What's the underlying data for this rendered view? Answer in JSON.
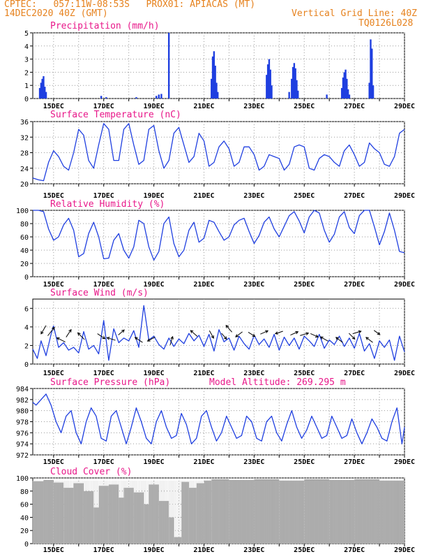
{
  "header": {
    "line1": "CPTEC:   057:11W-08:53S   PROX01: APIACAS (MT)",
    "date": "14DEC2020 40Z (GMT)",
    "grid_line": "Vertical Grid Line: 40Z",
    "code": "TQ0126L028"
  },
  "colors": {
    "orange": "#e6821e",
    "magenta": "#e8188a",
    "series": "#1f3fe0",
    "cloud": "#a9a9a9",
    "grid": "#9a9a9a"
  },
  "x_tick_labels": [
    "15DEC",
    "17DEC",
    "19DEC",
    "21DEC",
    "23DEC",
    "25DEC",
    "27DEC",
    "29DEC"
  ],
  "chart_data": [
    {
      "type": "bar",
      "title": "Precipitation (mm/h)",
      "ylim": [
        0,
        5
      ],
      "yticks": [
        0,
        1,
        2,
        3,
        4,
        5
      ],
      "x_range_days": [
        14.17,
        29.0
      ],
      "grid": true,
      "points": [
        [
          14.45,
          0.8
        ],
        [
          14.5,
          1.2
        ],
        [
          14.55,
          1.5
        ],
        [
          14.6,
          1.7
        ],
        [
          14.65,
          0.9
        ],
        [
          14.7,
          0.5
        ],
        [
          16.9,
          0.2
        ],
        [
          17.1,
          0.1
        ],
        [
          18.3,
          0.1
        ],
        [
          19.1,
          0.2
        ],
        [
          19.2,
          0.3
        ],
        [
          19.3,
          0.35
        ],
        [
          19.6,
          5.0
        ],
        [
          21.3,
          1.5
        ],
        [
          21.35,
          3.2
        ],
        [
          21.4,
          3.6
        ],
        [
          21.45,
          2.5
        ],
        [
          21.5,
          1.2
        ],
        [
          21.55,
          0.5
        ],
        [
          23.5,
          1.8
        ],
        [
          23.55,
          2.6
        ],
        [
          23.6,
          3.0
        ],
        [
          23.65,
          2.2
        ],
        [
          23.7,
          1.0
        ],
        [
          24.4,
          0.5
        ],
        [
          24.5,
          1.5
        ],
        [
          24.55,
          2.4
        ],
        [
          24.6,
          2.7
        ],
        [
          24.65,
          2.3
        ],
        [
          24.7,
          1.4
        ],
        [
          24.75,
          0.6
        ],
        [
          25.9,
          0.3
        ],
        [
          26.5,
          0.8
        ],
        [
          26.55,
          1.6
        ],
        [
          26.6,
          2.0
        ],
        [
          26.65,
          2.2
        ],
        [
          26.7,
          1.5
        ],
        [
          26.75,
          0.7
        ],
        [
          26.8,
          0.3
        ],
        [
          27.6,
          1.2
        ],
        [
          27.65,
          4.5
        ],
        [
          27.7,
          3.8
        ],
        [
          27.75,
          1.0
        ]
      ]
    },
    {
      "type": "line",
      "title": "Surface Temperature (nC)",
      "ylim": [
        20,
        36
      ],
      "yticks": [
        20,
        24,
        28,
        32,
        36
      ],
      "grid": true,
      "x": [
        14.17,
        14.4,
        14.6,
        14.8,
        15.0,
        15.2,
        15.4,
        15.6,
        15.8,
        16.0,
        16.2,
        16.4,
        16.6,
        16.8,
        17.0,
        17.2,
        17.4,
        17.6,
        17.8,
        18.0,
        18.2,
        18.4,
        18.6,
        18.8,
        19.0,
        19.2,
        19.4,
        19.6,
        19.8,
        20.0,
        20.2,
        20.4,
        20.6,
        20.8,
        21.0,
        21.2,
        21.4,
        21.6,
        21.8,
        22.0,
        22.2,
        22.4,
        22.6,
        22.8,
        23.0,
        23.2,
        23.4,
        23.6,
        23.8,
        24.0,
        24.2,
        24.4,
        24.6,
        24.8,
        25.0,
        25.2,
        25.4,
        25.6,
        25.8,
        26.0,
        26.2,
        26.4,
        26.6,
        26.8,
        27.0,
        27.2,
        27.4,
        27.6,
        27.8,
        28.0,
        28.2,
        28.4,
        28.6,
        28.8,
        29.0
      ],
      "y": [
        21.5,
        21,
        20.8,
        25.5,
        28.5,
        27,
        24.5,
        23.5,
        28,
        34,
        32.5,
        26,
        24,
        30,
        35.5,
        34,
        26,
        26,
        34,
        35.5,
        30,
        25,
        26,
        34,
        35,
        28.5,
        24,
        26,
        33,
        34.5,
        30,
        25.5,
        27,
        33,
        31,
        24.5,
        25.5,
        29.5,
        31,
        29,
        24.5,
        25.5,
        29.5,
        29.5,
        27.5,
        23.5,
        24.5,
        27.5,
        27,
        26.5,
        23.5,
        25,
        29.5,
        30,
        29.5,
        24,
        23.5,
        26.5,
        27.5,
        27,
        25.5,
        24.5,
        28.5,
        30,
        27.5,
        24.5,
        25.5,
        30.5,
        29,
        28,
        25,
        24.5,
        27,
        33,
        34
      ]
    },
    {
      "type": "line",
      "title": "Relative Humidity (%)",
      "ylim": [
        0,
        100
      ],
      "yticks": [
        0,
        20,
        40,
        60,
        80,
        100
      ],
      "grid": true,
      "x": [
        14.17,
        14.4,
        14.6,
        14.8,
        15.0,
        15.2,
        15.4,
        15.6,
        15.8,
        16.0,
        16.2,
        16.4,
        16.6,
        16.8,
        17.0,
        17.2,
        17.4,
        17.6,
        17.8,
        18.0,
        18.2,
        18.4,
        18.6,
        18.8,
        19.0,
        19.2,
        19.4,
        19.6,
        19.8,
        20.0,
        20.2,
        20.4,
        20.6,
        20.8,
        21.0,
        21.2,
        21.4,
        21.6,
        21.8,
        22.0,
        22.2,
        22.4,
        22.6,
        22.8,
        23.0,
        23.2,
        23.4,
        23.6,
        23.8,
        24.0,
        24.2,
        24.4,
        24.6,
        24.8,
        25.0,
        25.2,
        25.4,
        25.6,
        25.8,
        26.0,
        26.2,
        26.4,
        26.6,
        26.8,
        27.0,
        27.2,
        27.4,
        27.6,
        27.8,
        28.0,
        28.2,
        28.4,
        28.6,
        28.8,
        29.0
      ],
      "y": [
        100,
        100,
        98,
        72,
        55,
        60,
        78,
        88,
        70,
        30,
        35,
        65,
        82,
        60,
        27,
        28,
        55,
        65,
        40,
        28,
        45,
        85,
        80,
        45,
        25,
        38,
        80,
        90,
        50,
        30,
        40,
        70,
        82,
        52,
        58,
        85,
        82,
        68,
        55,
        60,
        78,
        85,
        88,
        68,
        50,
        62,
        82,
        90,
        72,
        60,
        76,
        92,
        98,
        84,
        66,
        90,
        100,
        96,
        70,
        52,
        64,
        90,
        98,
        74,
        65,
        92,
        100,
        100,
        75,
        48,
        68,
        96,
        70,
        38,
        36
      ]
    },
    {
      "type": "line",
      "title": "Surface Wind (m/s)",
      "ylim": [
        0,
        7
      ],
      "yticks": [
        0,
        2,
        4,
        6
      ],
      "grid": true,
      "x": [
        14.17,
        14.35,
        14.5,
        14.7,
        14.9,
        15.0,
        15.2,
        15.4,
        15.6,
        15.8,
        16.0,
        16.2,
        16.4,
        16.6,
        16.8,
        17.0,
        17.2,
        17.4,
        17.6,
        17.8,
        18.0,
        18.2,
        18.4,
        18.6,
        18.8,
        19.0,
        19.2,
        19.4,
        19.6,
        19.8,
        20.0,
        20.2,
        20.4,
        20.6,
        20.8,
        21.0,
        21.2,
        21.4,
        21.6,
        21.8,
        22.0,
        22.2,
        22.4,
        22.6,
        22.8,
        23.0,
        23.2,
        23.4,
        23.6,
        23.8,
        24.0,
        24.2,
        24.4,
        24.6,
        24.8,
        25.0,
        25.2,
        25.4,
        25.6,
        25.8,
        26.0,
        26.2,
        26.4,
        26.6,
        26.8,
        27.0,
        27.2,
        27.4,
        27.6,
        27.8,
        28.0,
        28.2,
        28.4,
        28.6,
        28.8,
        29.0
      ],
      "y": [
        1.6,
        0.6,
        2.5,
        0.9,
        3.2,
        4.1,
        1.8,
        2.3,
        1.5,
        1.8,
        1.2,
        3.5,
        1.6,
        2.0,
        1.1,
        4.7,
        0.4,
        3.8,
        2.3,
        2.8,
        2.5,
        3.6,
        1.8,
        6.3,
        2.6,
        3.0,
        2.1,
        1.6,
        2.8,
        1.9,
        2.7,
        2.2,
        3.3,
        2.5,
        3.1,
        1.9,
        3.2,
        1.4,
        3.7,
        2.4,
        2.8,
        1.5,
        3.0,
        2.2,
        1.6,
        3.1,
        2.1,
        2.7,
        1.8,
        3.2,
        1.5,
        2.9,
        2.0,
        2.8,
        1.6,
        3.0,
        2.5,
        1.9,
        3.2,
        1.7,
        2.6,
        2.1,
        3.0,
        1.9,
        2.8,
        1.7,
        3.3,
        1.4,
        2.2,
        0.6,
        2.5,
        1.8,
        2.6,
        0.4,
        3.0,
        1.3
      ]
    },
    {
      "type": "line",
      "title": "Surface Pressure (hPa)",
      "annotation": "Model Altitude: 269.295 m",
      "ylim": [
        972,
        984
      ],
      "yticks": [
        972,
        974,
        976,
        978,
        980,
        982,
        984
      ],
      "grid": true,
      "x": [
        14.17,
        14.3,
        14.5,
        14.7,
        14.9,
        15.1,
        15.3,
        15.5,
        15.7,
        15.9,
        16.1,
        16.3,
        16.5,
        16.7,
        16.9,
        17.1,
        17.3,
        17.5,
        17.7,
        17.9,
        18.1,
        18.3,
        18.5,
        18.7,
        18.9,
        19.1,
        19.3,
        19.5,
        19.7,
        19.9,
        20.1,
        20.3,
        20.5,
        20.7,
        20.9,
        21.1,
        21.3,
        21.5,
        21.7,
        21.9,
        22.1,
        22.3,
        22.5,
        22.7,
        22.9,
        23.1,
        23.3,
        23.5,
        23.7,
        23.9,
        24.1,
        24.3,
        24.5,
        24.7,
        24.9,
        25.1,
        25.3,
        25.5,
        25.7,
        25.9,
        26.1,
        26.3,
        26.5,
        26.7,
        26.9,
        27.1,
        27.3,
        27.5,
        27.7,
        27.9,
        28.1,
        28.3,
        28.5,
        28.7,
        28.9,
        29.0
      ],
      "y": [
        981.5,
        981,
        982,
        983,
        981,
        978,
        976,
        979,
        980,
        976,
        974,
        978,
        980.5,
        979,
        975,
        974.5,
        979,
        980,
        977,
        974,
        977,
        980.5,
        978,
        975,
        974,
        978,
        980,
        977,
        975,
        975.5,
        979.5,
        977.5,
        974,
        975,
        979,
        980,
        977,
        974.5,
        976,
        979,
        977,
        975,
        975.5,
        979,
        978,
        975,
        974.5,
        978,
        979,
        976,
        974.5,
        977.5,
        980,
        977,
        975,
        976.5,
        979,
        977,
        975,
        975.5,
        979,
        977,
        975,
        975.5,
        978.5,
        976,
        974,
        976,
        978.5,
        977,
        975,
        974.5,
        978,
        980.5,
        974,
        977
      ]
    },
    {
      "type": "bar",
      "title": "Cloud Cover (%)",
      "ylim": [
        0,
        100
      ],
      "yticks": [
        0,
        20,
        40,
        60,
        80,
        100
      ],
      "grid": true,
      "segments": [
        [
          14.17,
          95
        ],
        [
          14.6,
          97
        ],
        [
          15.0,
          93
        ],
        [
          15.4,
          85
        ],
        [
          15.8,
          92
        ],
        [
          16.2,
          80
        ],
        [
          16.6,
          55
        ],
        [
          16.8,
          88
        ],
        [
          17.2,
          90
        ],
        [
          17.6,
          70
        ],
        [
          17.8,
          85
        ],
        [
          18.2,
          78
        ],
        [
          18.6,
          60
        ],
        [
          18.8,
          90
        ],
        [
          19.2,
          65
        ],
        [
          19.6,
          40
        ],
        [
          19.8,
          10
        ],
        [
          20.1,
          94
        ],
        [
          20.4,
          85
        ],
        [
          20.7,
          92
        ],
        [
          21.0,
          96
        ],
        [
          21.3,
          98
        ],
        [
          22.0,
          97
        ],
        [
          23.0,
          98
        ],
        [
          24.0,
          96
        ],
        [
          25.0,
          98
        ],
        [
          26.0,
          97
        ],
        [
          27.0,
          98
        ],
        [
          28.0,
          96
        ],
        [
          29.0,
          96
        ]
      ]
    }
  ]
}
